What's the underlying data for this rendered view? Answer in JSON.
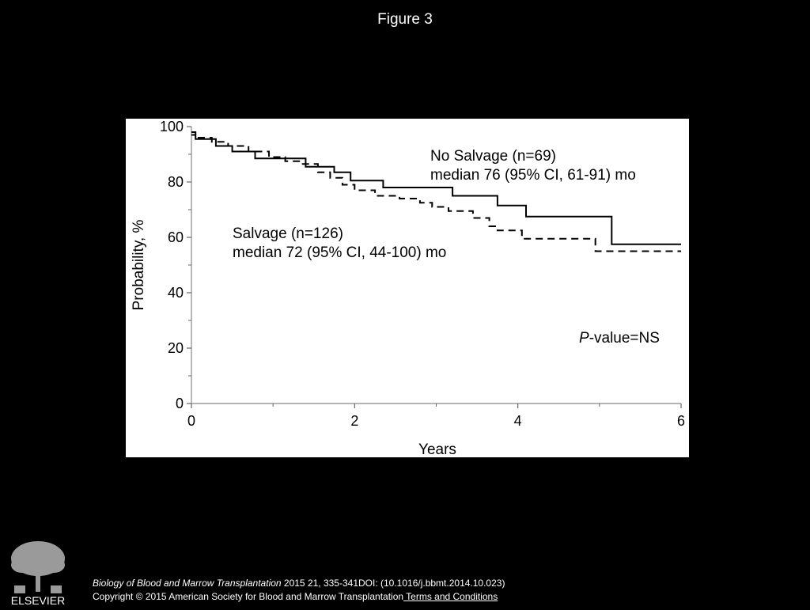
{
  "header": {
    "title": "Figure 3"
  },
  "chart_data": {
    "type": "line",
    "title": "",
    "xlabel": "Years",
    "ylabel": "Probability, %",
    "xlim": [
      0,
      6
    ],
    "ylim": [
      0,
      100
    ],
    "x_ticks": [
      0,
      2,
      4,
      6
    ],
    "x_minor_ticks": [
      1,
      3,
      5
    ],
    "y_ticks": [
      0,
      20,
      40,
      60,
      80,
      100
    ],
    "grid": false,
    "series": [
      {
        "line_style": "solid",
        "color": "#000000",
        "annotation": [
          "No Salvage (n=69)",
          "median 76 (95% CI, 61-91) mo"
        ],
        "x": [
          0,
          0.05,
          0.3,
          0.5,
          0.78,
          1.4,
          1.75,
          1.95,
          2.35,
          3.2,
          3.75,
          4.1,
          5.15,
          6.0
        ],
        "y": [
          97,
          95.5,
          93,
          91,
          88.5,
          85.5,
          83.5,
          80.5,
          78,
          75,
          71.5,
          67.5,
          57.5,
          57.5
        ]
      },
      {
        "line_style": "dashed",
        "color": "#000000",
        "annotation": [
          "Salvage (n=126)",
          "median 72 (95% CI, 44-100) mo"
        ],
        "x": [
          0,
          0.05,
          0.25,
          0.45,
          0.7,
          0.95,
          1.15,
          1.35,
          1.55,
          1.7,
          1.85,
          2.0,
          2.25,
          2.55,
          2.8,
          2.95,
          3.15,
          3.45,
          3.65,
          3.75,
          4.05,
          4.45,
          4.75,
          4.95,
          6.0
        ],
        "y": [
          98,
          96,
          94.5,
          93,
          91,
          89,
          87.5,
          86.5,
          83.5,
          81.5,
          79,
          77,
          75,
          74,
          72.5,
          71,
          69.5,
          67,
          64,
          62.5,
          59.5,
          59.5,
          59.5,
          55,
          55
        ]
      }
    ],
    "annotations": [
      {
        "text_italic": "P",
        "text": "-value=NS"
      }
    ]
  },
  "footer": {
    "journal": "Biology of Blood and Marrow Transplantation",
    "citation": " 2015 21, 335-341DOI: (10.1016/j.bbmt.2014.10.023)",
    "copyright": "Copyright © 2015 American Society for Blood and Marrow Transplantation",
    "terms_link": " Terms and Conditions",
    "logo_text": "ELSEVIER"
  }
}
